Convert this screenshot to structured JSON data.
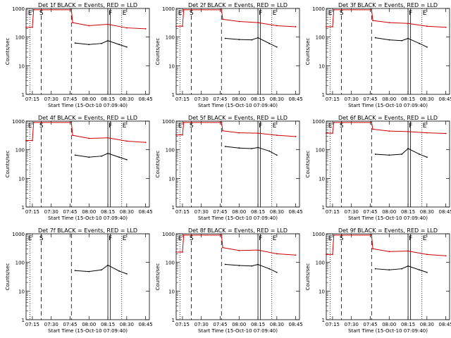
{
  "xlabel": "Start Time (15-Oct-10 07:09:40)",
  "ylabel": "Counts/sec",
  "x_ticks": [
    "07:15",
    "07:30",
    "07:45",
    "08:00",
    "08:15",
    "08:30",
    "08:45"
  ],
  "y_ticks": [
    "1",
    "10",
    "100",
    "1000"
  ],
  "colors": {
    "events": "#000000",
    "lld": "#cc0000"
  },
  "chart_data": [
    {
      "type": "line",
      "title": "Det 1f BLACK = Events, RED = LLD",
      "scale": "log",
      "ylim": [
        1,
        1000
      ],
      "xlim": [
        "07:10",
        "08:48"
      ],
      "markers": [
        "E",
        "S",
        "F",
        "E"
      ],
      "series": [
        {
          "name": "Events",
          "values": [
            {
              "x": "07:49",
              "y": 62
            },
            {
              "x": "08:00",
              "y": 55
            },
            {
              "x": "08:10",
              "y": 60
            },
            {
              "x": "08:15",
              "y": 75
            },
            {
              "x": "08:24",
              "y": 55
            },
            {
              "x": "08:30",
              "y": 45
            }
          ]
        },
        {
          "name": "LLD",
          "values": [
            {
              "x": "07:10",
              "y": 220
            },
            {
              "x": "07:15",
              "y": 220
            },
            {
              "x": "07:16",
              "y": 900
            },
            {
              "x": "07:46",
              "y": 900
            },
            {
              "x": "07:47",
              "y": 320
            },
            {
              "x": "08:00",
              "y": 250
            },
            {
              "x": "08:15",
              "y": 280
            },
            {
              "x": "08:30",
              "y": 210
            },
            {
              "x": "08:45",
              "y": 195
            }
          ]
        }
      ]
    },
    {
      "type": "line",
      "title": "Det 2f BLACK = Events, RED = LLD",
      "scale": "log",
      "ylim": [
        1,
        1000
      ],
      "xlim": [
        "07:10",
        "08:48"
      ],
      "markers": [
        "E",
        "S",
        "F",
        "E"
      ],
      "series": [
        {
          "name": "Events",
          "values": [
            {
              "x": "07:49",
              "y": 90
            },
            {
              "x": "08:00",
              "y": 82
            },
            {
              "x": "08:10",
              "y": 80
            },
            {
              "x": "08:15",
              "y": 95
            },
            {
              "x": "08:24",
              "y": 60
            },
            {
              "x": "08:30",
              "y": 45
            }
          ]
        },
        {
          "name": "LLD",
          "values": [
            {
              "x": "07:10",
              "y": 240
            },
            {
              "x": "07:15",
              "y": 240
            },
            {
              "x": "07:16",
              "y": 900
            },
            {
              "x": "07:46",
              "y": 900
            },
            {
              "x": "07:47",
              "y": 420
            },
            {
              "x": "08:00",
              "y": 350
            },
            {
              "x": "08:15",
              "y": 320
            },
            {
              "x": "08:30",
              "y": 250
            },
            {
              "x": "08:45",
              "y": 230
            }
          ]
        }
      ]
    },
    {
      "type": "line",
      "title": "Det 3f BLACK = Events, RED = LLD",
      "scale": "log",
      "ylim": [
        1,
        1000
      ],
      "xlim": [
        "07:10",
        "08:48"
      ],
      "markers": [
        "E",
        "S",
        "F",
        "E"
      ],
      "series": [
        {
          "name": "Events",
          "values": [
            {
              "x": "07:49",
              "y": 95
            },
            {
              "x": "08:00",
              "y": 80
            },
            {
              "x": "08:10",
              "y": 75
            },
            {
              "x": "08:15",
              "y": 90
            },
            {
              "x": "08:24",
              "y": 60
            },
            {
              "x": "08:30",
              "y": 45
            }
          ]
        },
        {
          "name": "LLD",
          "values": [
            {
              "x": "07:10",
              "y": 230
            },
            {
              "x": "07:15",
              "y": 230
            },
            {
              "x": "07:16",
              "y": 900
            },
            {
              "x": "07:46",
              "y": 900
            },
            {
              "x": "07:47",
              "y": 380
            },
            {
              "x": "08:00",
              "y": 320
            },
            {
              "x": "08:15",
              "y": 300
            },
            {
              "x": "08:30",
              "y": 240
            },
            {
              "x": "08:45",
              "y": 220
            }
          ]
        }
      ]
    },
    {
      "type": "line",
      "title": "Det 4f BLACK = Events, RED = LLD",
      "scale": "log",
      "ylim": [
        1,
        1000
      ],
      "xlim": [
        "07:10",
        "08:48"
      ],
      "markers": [
        "E",
        "S",
        "F",
        "E"
      ],
      "series": [
        {
          "name": "Events",
          "values": [
            {
              "x": "07:49",
              "y": 65
            },
            {
              "x": "08:00",
              "y": 55
            },
            {
              "x": "08:10",
              "y": 60
            },
            {
              "x": "08:15",
              "y": 75
            },
            {
              "x": "08:24",
              "y": 55
            },
            {
              "x": "08:30",
              "y": 45
            }
          ]
        },
        {
          "name": "LLD",
          "values": [
            {
              "x": "07:10",
              "y": 210
            },
            {
              "x": "07:15",
              "y": 210
            },
            {
              "x": "07:16",
              "y": 900
            },
            {
              "x": "07:46",
              "y": 900
            },
            {
              "x": "07:47",
              "y": 320
            },
            {
              "x": "08:00",
              "y": 250
            },
            {
              "x": "08:15",
              "y": 260
            },
            {
              "x": "08:30",
              "y": 200
            },
            {
              "x": "08:45",
              "y": 180
            }
          ]
        }
      ]
    },
    {
      "type": "line",
      "title": "Det 5f BLACK = Events, RED = LLD",
      "scale": "log",
      "ylim": [
        1,
        1000
      ],
      "xlim": [
        "07:10",
        "08:48"
      ],
      "markers": [
        "E",
        "S",
        "F",
        "E"
      ],
      "series": [
        {
          "name": "Events",
          "values": [
            {
              "x": "07:49",
              "y": 130
            },
            {
              "x": "08:00",
              "y": 115
            },
            {
              "x": "08:10",
              "y": 110
            },
            {
              "x": "08:15",
              "y": 120
            },
            {
              "x": "08:24",
              "y": 90
            },
            {
              "x": "08:30",
              "y": 65
            }
          ]
        },
        {
          "name": "LLD",
          "values": [
            {
              "x": "07:10",
              "y": 330
            },
            {
              "x": "07:15",
              "y": 330
            },
            {
              "x": "07:16",
              "y": 900
            },
            {
              "x": "07:46",
              "y": 900
            },
            {
              "x": "07:47",
              "y": 460
            },
            {
              "x": "08:00",
              "y": 390
            },
            {
              "x": "08:15",
              "y": 380
            },
            {
              "x": "08:30",
              "y": 320
            },
            {
              "x": "08:45",
              "y": 290
            }
          ]
        }
      ]
    },
    {
      "type": "line",
      "title": "Det 6f BLACK = Events, RED = LLD",
      "scale": "log",
      "ylim": [
        1,
        1000
      ],
      "xlim": [
        "07:10",
        "08:48"
      ],
      "markers": [
        "E",
        "S",
        "F",
        "E"
      ],
      "series": [
        {
          "name": "Events",
          "values": [
            {
              "x": "07:49",
              "y": 70
            },
            {
              "x": "08:00",
              "y": 65
            },
            {
              "x": "08:10",
              "y": 70
            },
            {
              "x": "08:15",
              "y": 110
            },
            {
              "x": "08:24",
              "y": 70
            },
            {
              "x": "08:30",
              "y": 55
            }
          ]
        },
        {
          "name": "LLD",
          "values": [
            {
              "x": "07:10",
              "y": 380
            },
            {
              "x": "07:15",
              "y": 380
            },
            {
              "x": "07:16",
              "y": 900
            },
            {
              "x": "07:46",
              "y": 900
            },
            {
              "x": "07:47",
              "y": 520
            },
            {
              "x": "08:00",
              "y": 450
            },
            {
              "x": "08:15",
              "y": 430
            },
            {
              "x": "08:30",
              "y": 390
            },
            {
              "x": "08:45",
              "y": 370
            }
          ]
        }
      ]
    },
    {
      "type": "line",
      "title": "Det 7f BLACK = Events, RED = LLD",
      "scale": "log",
      "ylim": [
        1,
        1000
      ],
      "xlim": [
        "07:10",
        "08:48"
      ],
      "markers": [
        "E",
        "S",
        "F",
        "E"
      ],
      "series": [
        {
          "name": "Events",
          "values": [
            {
              "x": "07:49",
              "y": 52
            },
            {
              "x": "08:00",
              "y": 48
            },
            {
              "x": "08:10",
              "y": 55
            },
            {
              "x": "08:15",
              "y": 80
            },
            {
              "x": "08:24",
              "y": 50
            },
            {
              "x": "08:30",
              "y": 40
            }
          ]
        },
        {
          "name": "LLD",
          "values": []
        }
      ]
    },
    {
      "type": "line",
      "title": "Det 8f BLACK = Events, RED = LLD",
      "scale": "log",
      "ylim": [
        1,
        1000
      ],
      "xlim": [
        "07:10",
        "08:48"
      ],
      "markers": [
        "E",
        "S",
        "F",
        "E"
      ],
      "series": [
        {
          "name": "Events",
          "values": [
            {
              "x": "07:49",
              "y": 85
            },
            {
              "x": "08:00",
              "y": 78
            },
            {
              "x": "08:10",
              "y": 75
            },
            {
              "x": "08:15",
              "y": 85
            },
            {
              "x": "08:24",
              "y": 60
            },
            {
              "x": "08:30",
              "y": 45
            }
          ]
        },
        {
          "name": "LLD",
          "values": [
            {
              "x": "07:10",
              "y": 230
            },
            {
              "x": "07:15",
              "y": 230
            },
            {
              "x": "07:16",
              "y": 900
            },
            {
              "x": "07:46",
              "y": 900
            },
            {
              "x": "07:47",
              "y": 330
            },
            {
              "x": "08:00",
              "y": 260
            },
            {
              "x": "08:15",
              "y": 270
            },
            {
              "x": "08:30",
              "y": 200
            },
            {
              "x": "08:45",
              "y": 180
            }
          ]
        }
      ]
    },
    {
      "type": "line",
      "title": "Det 9f BLACK = Events, RED = LLD",
      "scale": "log",
      "ylim": [
        1,
        1000
      ],
      "xlim": [
        "07:10",
        "08:48"
      ],
      "markers": [
        "E",
        "S",
        "F",
        "E"
      ],
      "series": [
        {
          "name": "Events",
          "values": [
            {
              "x": "07:49",
              "y": 60
            },
            {
              "x": "08:00",
              "y": 55
            },
            {
              "x": "08:10",
              "y": 60
            },
            {
              "x": "08:15",
              "y": 75
            },
            {
              "x": "08:24",
              "y": 55
            },
            {
              "x": "08:30",
              "y": 45
            }
          ]
        },
        {
          "name": "LLD",
          "values": [
            {
              "x": "07:10",
              "y": 190
            },
            {
              "x": "07:15",
              "y": 190
            },
            {
              "x": "07:16",
              "y": 900
            },
            {
              "x": "07:46",
              "y": 900
            },
            {
              "x": "07:47",
              "y": 300
            },
            {
              "x": "08:00",
              "y": 240
            },
            {
              "x": "08:15",
              "y": 250
            },
            {
              "x": "08:30",
              "y": 190
            },
            {
              "x": "08:45",
              "y": 170
            }
          ]
        }
      ]
    }
  ]
}
